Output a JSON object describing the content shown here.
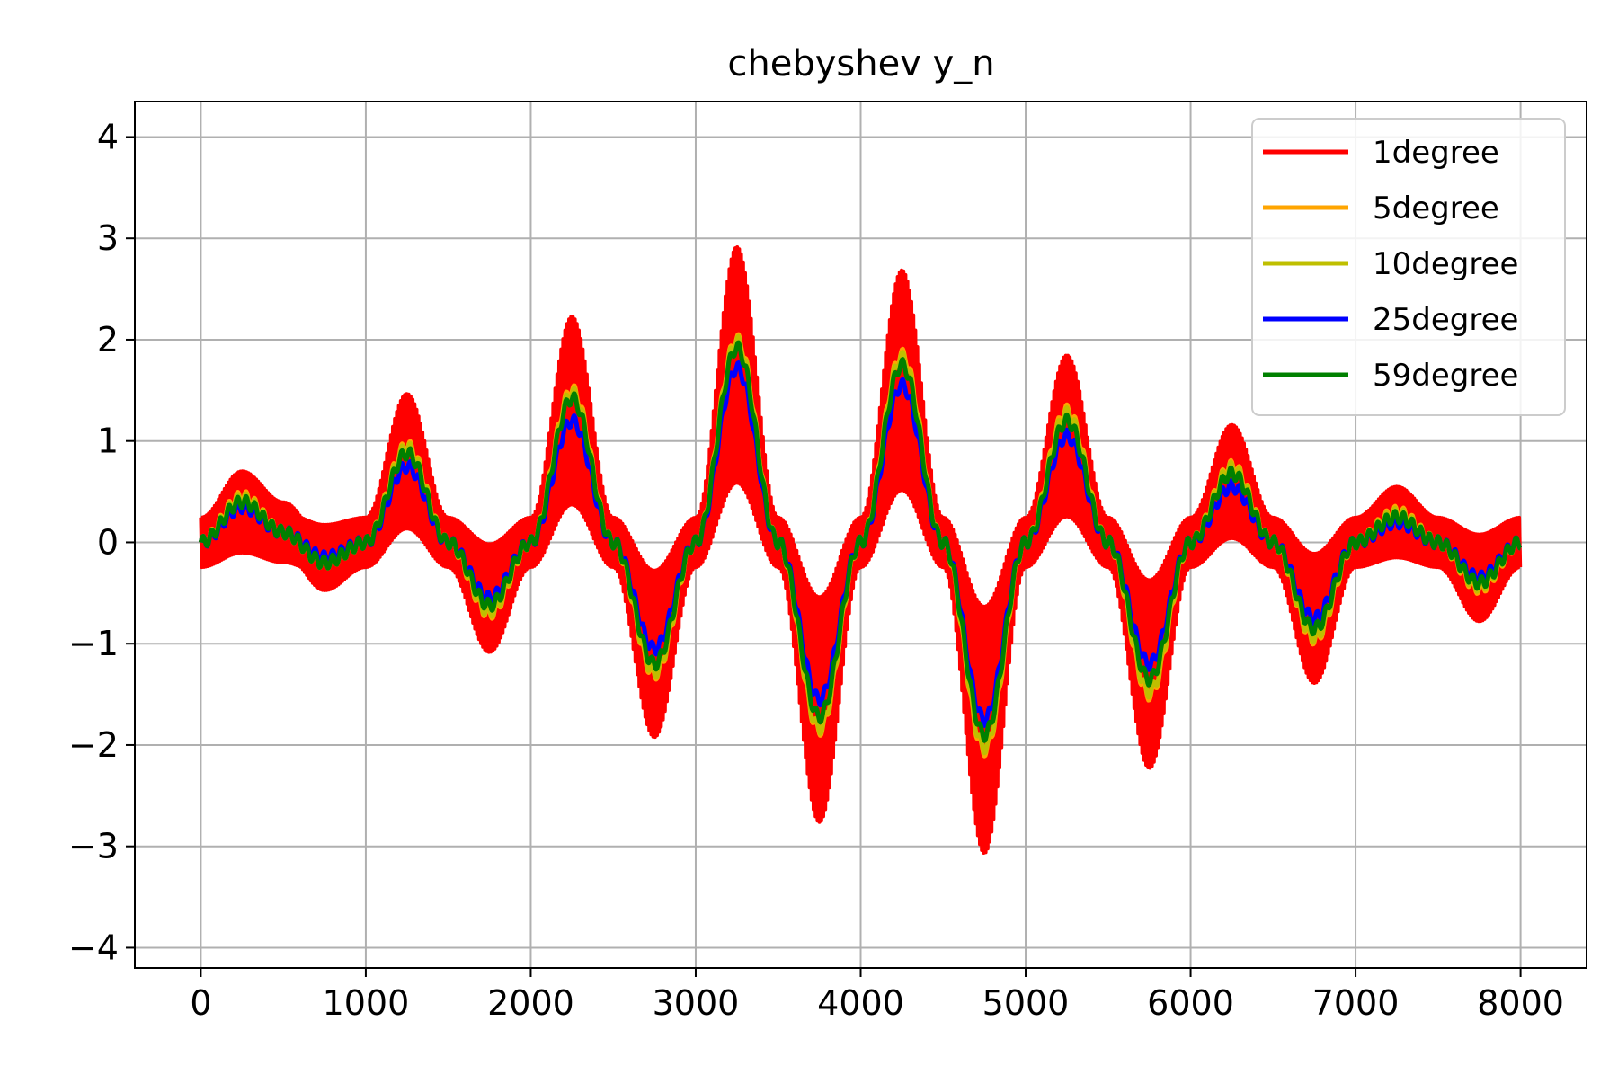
{
  "chart_data": {
    "type": "line",
    "title": "chebyshev y_n",
    "xlabel": "",
    "ylabel": "",
    "xlim": [
      -400,
      8400
    ],
    "ylim": [
      -4.2,
      4.35
    ],
    "x_ticks": [
      0,
      1000,
      2000,
      3000,
      4000,
      5000,
      6000,
      7000,
      8000
    ],
    "x_tick_labels": [
      "0",
      "1000",
      "2000",
      "3000",
      "4000",
      "5000",
      "6000",
      "7000",
      "8000"
    ],
    "y_ticks": [
      -4,
      -3,
      -2,
      -1,
      0,
      1,
      2,
      3,
      4
    ],
    "y_tick_labels": [
      "−4",
      "−3",
      "−2",
      "−1",
      "0",
      "1",
      "2",
      "3",
      "4"
    ],
    "grid": true,
    "legend_position": "top-right",
    "x": [
      0,
      250,
      500,
      750,
      1000,
      1250,
      1500,
      1750,
      2000,
      2250,
      2500,
      2750,
      3000,
      3250,
      3500,
      3750,
      4000,
      4250,
      4500,
      4750,
      5000,
      5250,
      5500,
      5750,
      6000,
      6250,
      6500,
      6750,
      7000,
      7250,
      7500,
      7750,
      8000
    ],
    "series": [
      {
        "name": "1degree",
        "color": "#ff0000",
        "amplitude": 0.7,
        "values": [
          0.0,
          0.3,
          0.1,
          -0.15,
          0.0,
          0.8,
          0.0,
          -0.55,
          0.0,
          1.3,
          0.0,
          -1.1,
          0.0,
          1.75,
          0.0,
          -1.65,
          0.0,
          1.6,
          0.0,
          -1.85,
          0.0,
          1.05,
          0.0,
          -1.3,
          0.0,
          0.6,
          0.0,
          -0.75,
          0.0,
          0.2,
          0.0,
          -0.35,
          0.0
        ]
      },
      {
        "name": "5degree",
        "color": "#ffa500",
        "values": [
          0.0,
          0.45,
          0.1,
          -0.2,
          0.0,
          0.95,
          0.0,
          -0.7,
          0.0,
          1.5,
          0.0,
          -1.3,
          0.0,
          2.0,
          0.0,
          -1.85,
          0.0,
          1.85,
          0.0,
          -2.05,
          0.0,
          1.3,
          0.0,
          -1.5,
          0.0,
          0.75,
          0.0,
          -0.95,
          0.0,
          0.3,
          0.0,
          -0.45,
          0.0
        ]
      },
      {
        "name": "10degree",
        "color": "#bfbf00",
        "values": [
          0.0,
          0.43,
          0.1,
          -0.2,
          0.0,
          0.93,
          0.0,
          -0.68,
          0.0,
          1.47,
          0.0,
          -1.28,
          0.0,
          1.98,
          0.0,
          -1.83,
          0.0,
          1.82,
          0.0,
          -2.02,
          0.0,
          1.27,
          0.0,
          -1.47,
          0.0,
          0.73,
          0.0,
          -0.93,
          0.0,
          0.28,
          0.0,
          -0.43,
          0.0
        ]
      },
      {
        "name": "25degree",
        "color": "#0000ff",
        "values": [
          0.0,
          0.35,
          0.1,
          -0.15,
          0.0,
          0.75,
          0.0,
          -0.55,
          0.0,
          1.2,
          0.0,
          -1.05,
          0.0,
          1.72,
          0.0,
          -1.55,
          0.0,
          1.55,
          0.0,
          -1.75,
          0.0,
          1.05,
          0.0,
          -1.2,
          0.0,
          0.55,
          0.0,
          -0.75,
          0.0,
          0.2,
          0.0,
          -0.35,
          0.0
        ]
      },
      {
        "name": "59degree",
        "color": "#008000",
        "values": [
          0.0,
          0.4,
          0.1,
          -0.2,
          0.0,
          0.88,
          0.0,
          -0.62,
          0.0,
          1.42,
          0.0,
          -1.2,
          0.0,
          1.92,
          0.0,
          -1.72,
          0.0,
          1.75,
          0.0,
          -1.9,
          0.0,
          1.2,
          0.0,
          -1.35,
          0.0,
          0.68,
          0.0,
          -0.85,
          0.0,
          0.25,
          0.0,
          -0.4,
          0.0
        ]
      }
    ]
  }
}
